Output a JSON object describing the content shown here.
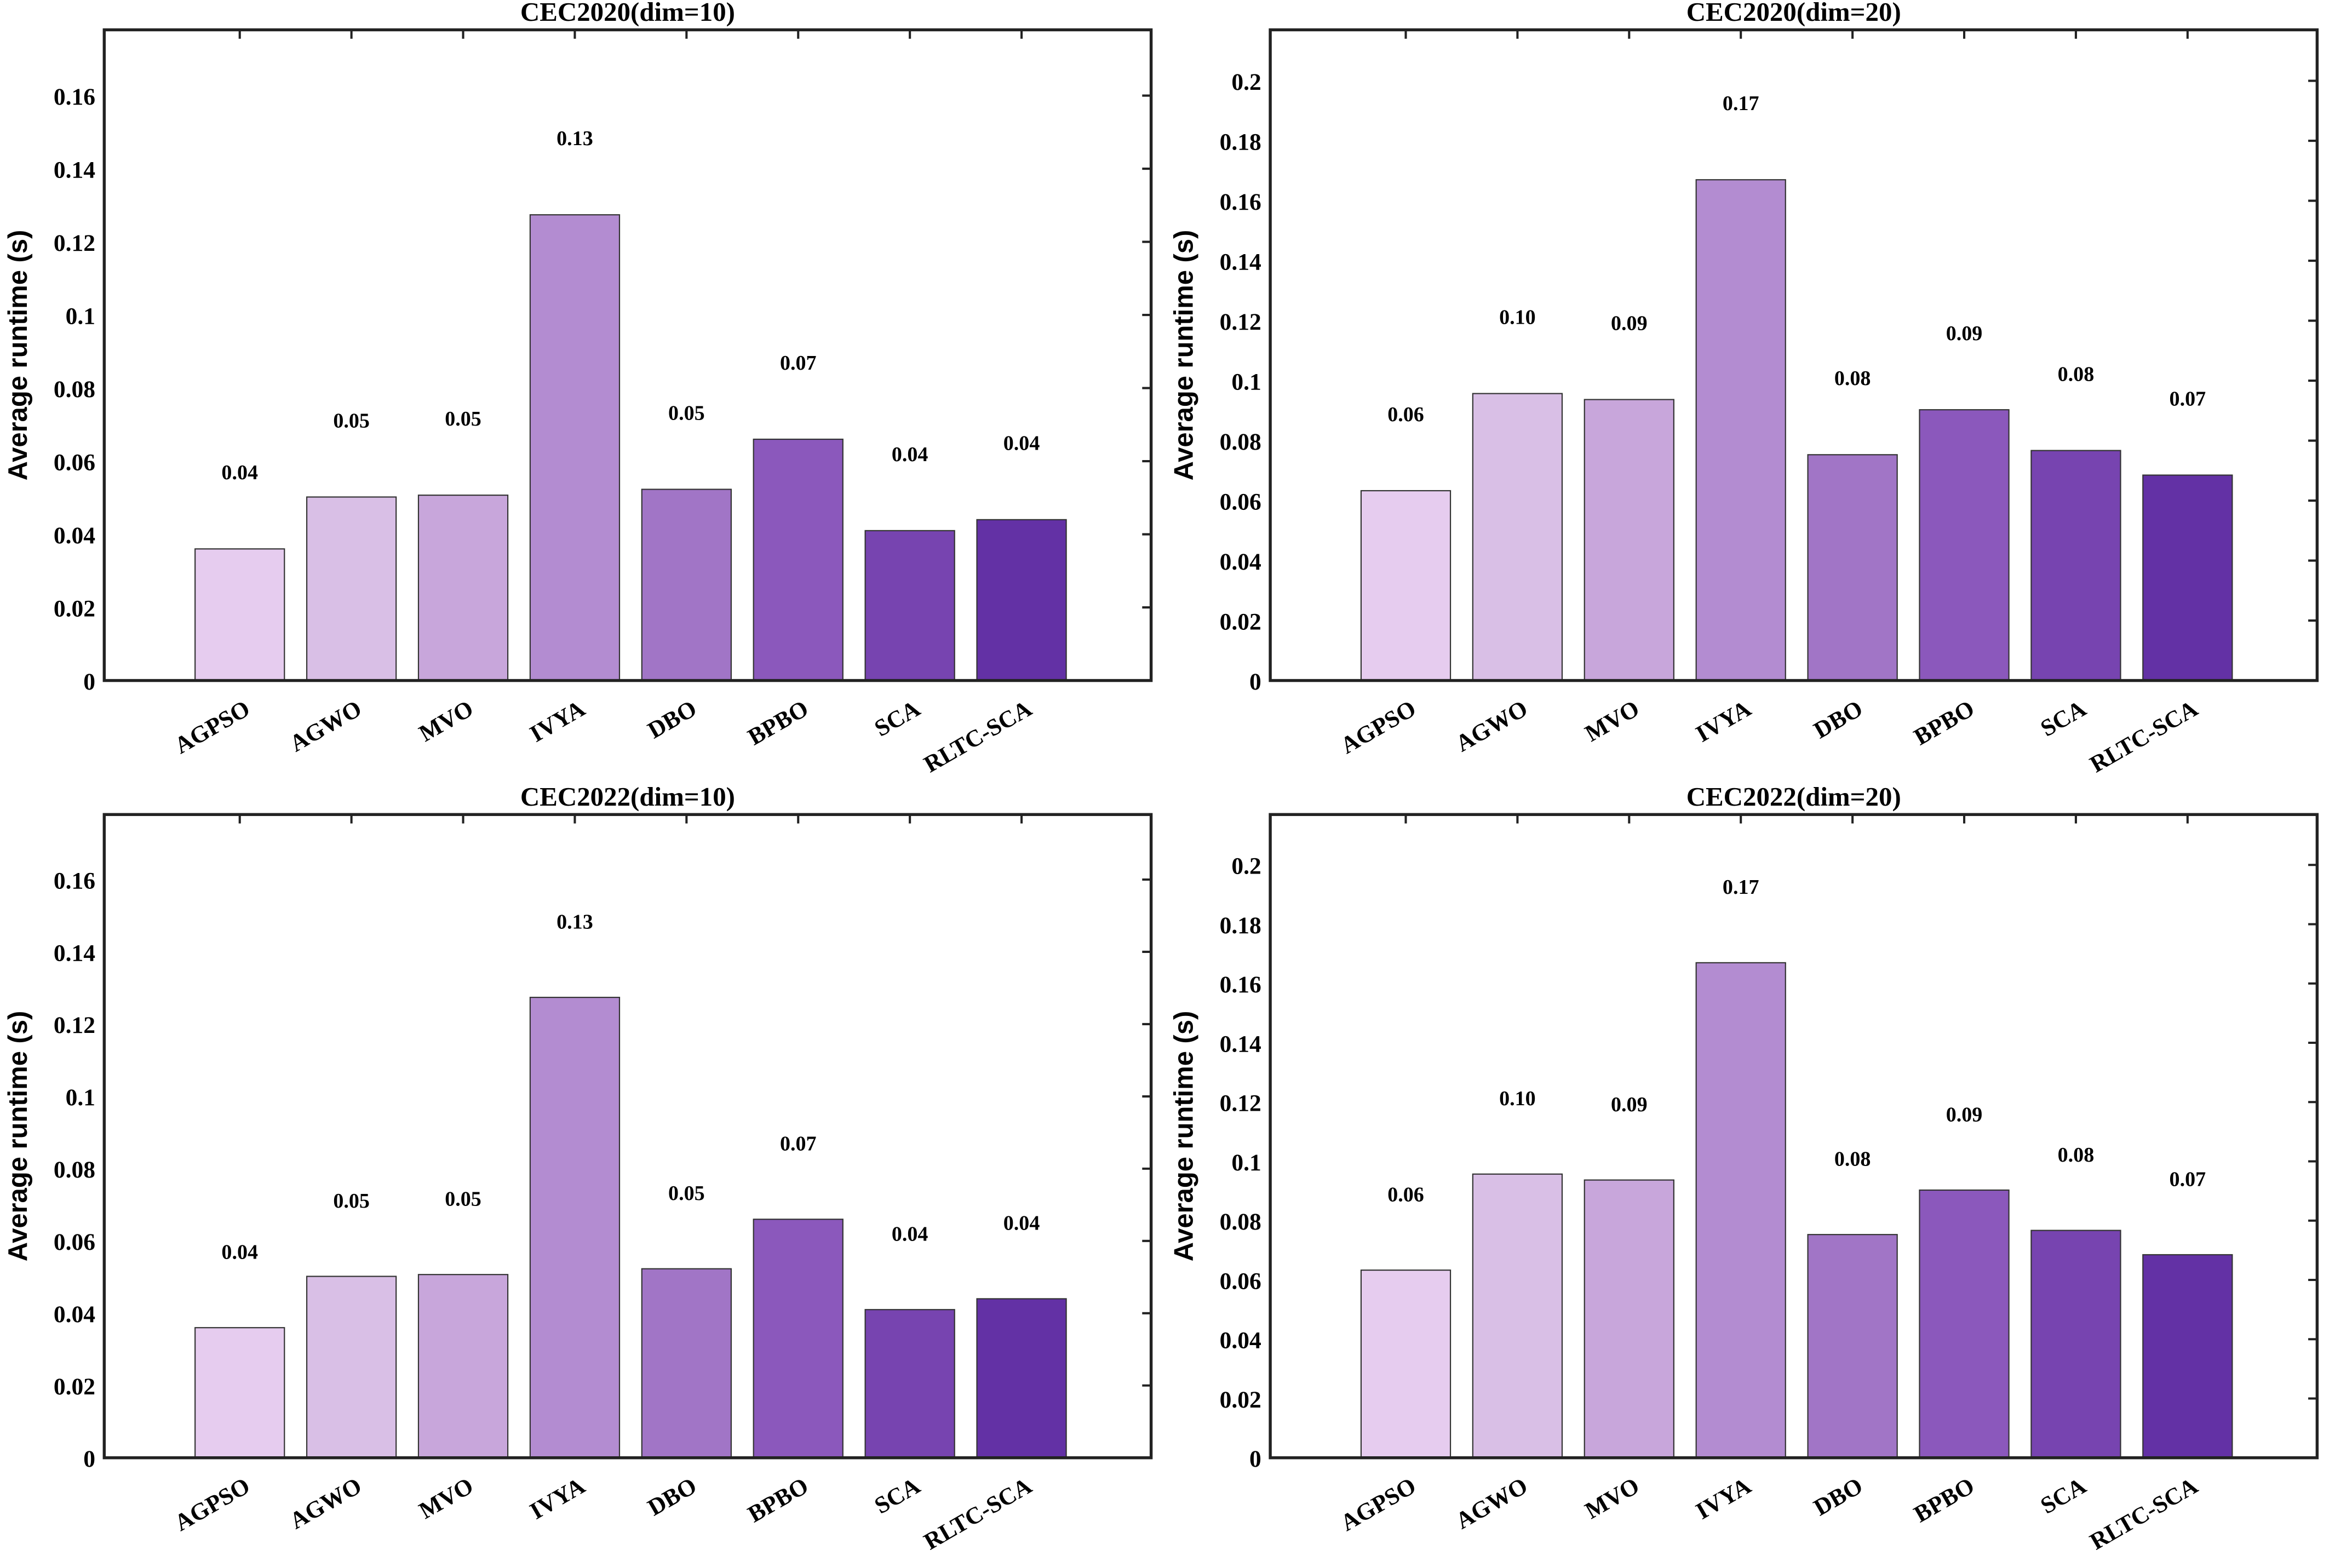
{
  "chart_data": [
    {
      "type": "bar",
      "title": "CEC2020(dim=10)",
      "ylabel": "Average runtime (s)",
      "xlabel": "",
      "categories": [
        "AGPSO",
        "AGWO",
        "MVO",
        "IVYA",
        "DBO",
        "BPBO",
        "SCA",
        "RLTC-SCA"
      ],
      "values": [
        0.036,
        0.0502,
        0.0507,
        0.1274,
        0.0523,
        0.066,
        0.041,
        0.044
      ],
      "data_labels": [
        "0.04",
        "0.05",
        "0.05",
        "0.13",
        "0.05",
        "0.07",
        "0.04",
        "0.04"
      ],
      "ylim": [
        0,
        0.178
      ],
      "yticks": [
        "0",
        "0.02",
        "0.04",
        "0.06",
        "0.08",
        "0.1",
        "0.12",
        "0.14",
        "0.16"
      ],
      "grid": false
    },
    {
      "type": "bar",
      "title": "CEC2020(dim=20)",
      "ylabel": "Average runtime (s)",
      "xlabel": "",
      "categories": [
        "AGPSO",
        "AGWO",
        "MVO",
        "IVYA",
        "DBO",
        "BPBO",
        "SCA",
        "RLTC-SCA"
      ],
      "values": [
        0.0633,
        0.0957,
        0.0937,
        0.167,
        0.0753,
        0.0903,
        0.0767,
        0.0685
      ],
      "data_labels": [
        "0.06",
        "0.10",
        "0.09",
        "0.17",
        "0.08",
        "0.09",
        "0.08",
        "0.07"
      ],
      "ylim": [
        0,
        0.217
      ],
      "yticks": [
        "0",
        "0.02",
        "0.04",
        "0.06",
        "0.08",
        "0.1",
        "0.12",
        "0.14",
        "0.16",
        "0.18",
        "0.2"
      ],
      "grid": false
    },
    {
      "type": "bar",
      "title": "CEC2022(dim=10)",
      "ylabel": "Average runtime (s)",
      "xlabel": "",
      "categories": [
        "AGPSO",
        "AGWO",
        "MVO",
        "IVYA",
        "DBO",
        "BPBO",
        "SCA",
        "RLTC-SCA"
      ],
      "values": [
        0.036,
        0.0502,
        0.0507,
        0.1274,
        0.0523,
        0.066,
        0.041,
        0.044
      ],
      "data_labels": [
        "0.04",
        "0.05",
        "0.05",
        "0.13",
        "0.05",
        "0.07",
        "0.04",
        "0.04"
      ],
      "ylim": [
        0,
        0.178
      ],
      "yticks": [
        "0",
        "0.02",
        "0.04",
        "0.06",
        "0.08",
        "0.1",
        "0.12",
        "0.14",
        "0.16"
      ],
      "grid": false
    },
    {
      "type": "bar",
      "title": "CEC2022(dim=20)",
      "ylabel": "Average runtime (s)",
      "xlabel": "",
      "categories": [
        "AGPSO",
        "AGWO",
        "MVO",
        "IVYA",
        "DBO",
        "BPBO",
        "SCA",
        "RLTC-SCA"
      ],
      "values": [
        0.0633,
        0.0957,
        0.0937,
        0.167,
        0.0753,
        0.0903,
        0.0767,
        0.0685
      ],
      "data_labels": [
        "0.06",
        "0.10",
        "0.09",
        "0.17",
        "0.08",
        "0.09",
        "0.08",
        "0.07"
      ],
      "ylim": [
        0,
        0.217
      ],
      "yticks": [
        "0",
        "0.02",
        "0.04",
        "0.06",
        "0.08",
        "0.1",
        "0.12",
        "0.14",
        "0.16",
        "0.18",
        "0.2"
      ],
      "grid": false
    }
  ],
  "colors": [
    "#E6CCEF",
    "#D9BFE6",
    "#C8A6DB",
    "#B38CD1",
    "#A175C6",
    "#8B58BC",
    "#7744B0",
    "#6331A5"
  ]
}
